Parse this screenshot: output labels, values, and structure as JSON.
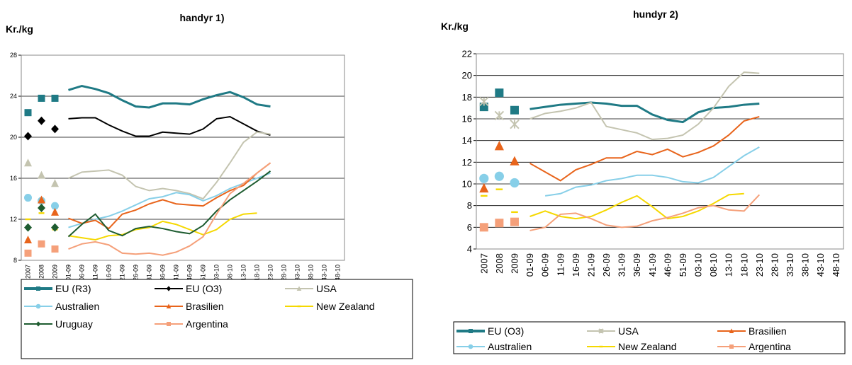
{
  "chart_data": [
    {
      "type": "line",
      "title": "handyr 1)",
      "y_label": "Kr./kg",
      "ylim": [
        8,
        28
      ],
      "yticks": [
        8,
        12,
        16,
        20,
        24,
        28
      ],
      "grid": true,
      "years": [
        "2007",
        "2008",
        "2009"
      ],
      "categories": [
        "01-09",
        "06-09",
        "11-09",
        "16-09",
        "21-09",
        "26-09",
        "31-09",
        "36-09",
        "41-09",
        "46-09",
        "51-09",
        "03-10",
        "08-10",
        "13-10",
        "18-10",
        "23-10",
        "28-10",
        "33-10",
        "38-10",
        "43-10",
        "48-10"
      ],
      "series": [
        {
          "name": "EU (R3)",
          "color": "#1f7a85",
          "marker": "square",
          "annual": [
            22.4,
            23.8,
            23.8
          ],
          "values": [
            24.6,
            25,
            24.7,
            24.3,
            23.6,
            23,
            22.9,
            23.3,
            23.3,
            23.2,
            23.7,
            24.1,
            24.4,
            23.9,
            23.2,
            23.0,
            null,
            null,
            null,
            null,
            null
          ]
        },
        {
          "name": "EU (O3)",
          "color": "#000000",
          "marker": "diamond",
          "annual": [
            20.1,
            21.6,
            20.8
          ],
          "values": [
            21.8,
            21.9,
            21.9,
            21.2,
            20.6,
            20.1,
            20.1,
            20.5,
            20.4,
            20.3,
            20.8,
            21.8,
            22,
            21.3,
            20.6,
            20.2,
            null,
            null,
            null,
            null,
            null
          ]
        },
        {
          "name": "USA",
          "color": "#c4c4b0",
          "marker": "triangle",
          "annual": [
            17.5,
            16.3,
            15.5
          ],
          "values": [
            16,
            16.6,
            16.7,
            16.8,
            16.3,
            15.2,
            14.8,
            15,
            14.8,
            14.5,
            14,
            15.6,
            17.5,
            19.5,
            20.5,
            20.3,
            null,
            null,
            null,
            null,
            null
          ]
        },
        {
          "name": "Australien",
          "color": "#87cfe8",
          "marker": "circle",
          "annual": [
            14.1,
            13.8,
            13.3
          ],
          "values": [
            11.2,
            11.6,
            12,
            12.3,
            12.8,
            13.4,
            14,
            14.2,
            14.6,
            14.4,
            13.8,
            14.3,
            15,
            15.5,
            16,
            16.5,
            null,
            null,
            null,
            null,
            null
          ]
        },
        {
          "name": "Brasilien",
          "color": "#e8641b",
          "marker": "triangle",
          "annual": [
            10,
            13.9,
            12.7
          ],
          "values": [
            12.1,
            11.6,
            11.9,
            11.1,
            12.5,
            12.9,
            13.5,
            13.9,
            13.5,
            13.4,
            13.3,
            14.1,
            14.8,
            15.3,
            16.5,
            17.5,
            null,
            null,
            null,
            null,
            null
          ]
        },
        {
          "name": "New Zealand",
          "color": "#f5d800",
          "marker": "dash",
          "annual": [
            12.0,
            12.6,
            11.0
          ],
          "values": [
            10.4,
            10.2,
            10.0,
            10.4,
            10.5,
            11,
            11.2,
            11.8,
            11.5,
            11,
            10.5,
            11,
            12,
            12.5,
            12.6,
            null,
            null,
            null,
            null,
            null,
            null
          ]
        },
        {
          "name": "Uruguay",
          "color": "#1e5c30",
          "marker": "diamond",
          "annual": [
            11.2,
            13.1,
            11.2
          ],
          "values": [
            10.3,
            11.5,
            12.5,
            10.9,
            10.4,
            11.1,
            11.3,
            11.1,
            10.8,
            10.6,
            11.4,
            12.8,
            13.9,
            14.8,
            15.7,
            16.7,
            null,
            null,
            null,
            null,
            null
          ]
        },
        {
          "name": "Argentina",
          "color": "#f5a07a",
          "marker": "square",
          "annual": [
            8.7,
            9.6,
            9.1
          ],
          "values": [
            9.1,
            9.6,
            9.8,
            9.5,
            8.7,
            8.6,
            8.7,
            8.5,
            8.8,
            9.4,
            10.3,
            12.5,
            14.5,
            15.5,
            16.5,
            17.5,
            null,
            null,
            null,
            null,
            null
          ]
        }
      ]
    },
    {
      "type": "line",
      "title": "hundyr 2)",
      "y_label": "Kr./kg",
      "ylim": [
        4,
        22
      ],
      "yticks": [
        4,
        6,
        8,
        10,
        12,
        14,
        16,
        18,
        20,
        22
      ],
      "grid": true,
      "years": [
        "2007",
        "2008",
        "2009"
      ],
      "categories": [
        "01-09",
        "06-09",
        "11-09",
        "16-09",
        "21-09",
        "26-09",
        "31-09",
        "36-09",
        "41-09",
        "46-09",
        "51-09",
        "03-10",
        "08-10",
        "13-10",
        "18-10",
        "23-10",
        "28-10",
        "33-10",
        "38-10",
        "43-10",
        "48-10"
      ],
      "series": [
        {
          "name": "EU (O3)",
          "color": "#1f7a85",
          "marker": "square",
          "annual": [
            17.1,
            18.4,
            16.8
          ],
          "values": [
            16.9,
            17.1,
            17.3,
            17.4,
            17.5,
            17.4,
            17.2,
            17.2,
            16.4,
            15.9,
            15.7,
            16.6,
            17,
            17.1,
            17.3,
            17.4,
            null,
            null,
            null,
            null,
            null
          ]
        },
        {
          "name": "USA",
          "color": "#c4c4b0",
          "marker": "star",
          "annual": [
            17.6,
            16.3,
            15.5
          ],
          "values": [
            16,
            16.5,
            16.7,
            17,
            17.5,
            15.3,
            15,
            14.7,
            14.1,
            14.2,
            14.5,
            15.5,
            17,
            19,
            20.3,
            20.2,
            null,
            null,
            null,
            null,
            null
          ]
        },
        {
          "name": "Brasilien",
          "color": "#e8641b",
          "marker": "triangle",
          "annual": [
            9.6,
            13.5,
            12.1
          ],
          "values": [
            11.9,
            11.1,
            10.3,
            11.3,
            11.8,
            12.4,
            12.4,
            13,
            12.7,
            13.2,
            12.5,
            12.9,
            13.5,
            14.5,
            15.8,
            16.2,
            null,
            null,
            null,
            null,
            null
          ]
        },
        {
          "name": "Australien",
          "color": "#87cfe8",
          "marker": "circle",
          "annual": [
            10.5,
            10.7,
            10.1
          ],
          "values": [
            null,
            8.9,
            9.1,
            9.7,
            9.9,
            10.3,
            10.5,
            10.8,
            10.8,
            10.6,
            10.2,
            10.1,
            10.6,
            11.6,
            12.6,
            13.4,
            null,
            null,
            null,
            null,
            null
          ]
        },
        {
          "name": "New Zealand",
          "color": "#f5d800",
          "marker": "dash",
          "annual": [
            8.9,
            9.5,
            7.4
          ],
          "values": [
            7.0,
            7.5,
            7.0,
            6.8,
            7.0,
            7.6,
            8.3,
            8.9,
            7.9,
            6.8,
            7.0,
            7.5,
            8.2,
            9.0,
            9.1,
            null,
            null,
            null,
            null,
            null,
            null
          ]
        },
        {
          "name": "Argentina",
          "color": "#f5a07a",
          "marker": "square",
          "annual": [
            6.0,
            6.4,
            6.5
          ],
          "values": [
            5.7,
            6.0,
            7.2,
            7.3,
            6.8,
            6.2,
            6.0,
            6.1,
            6.6,
            6.9,
            7.3,
            7.8,
            8,
            7.6,
            7.5,
            9.0,
            null,
            null,
            null,
            null,
            null
          ]
        }
      ]
    }
  ]
}
